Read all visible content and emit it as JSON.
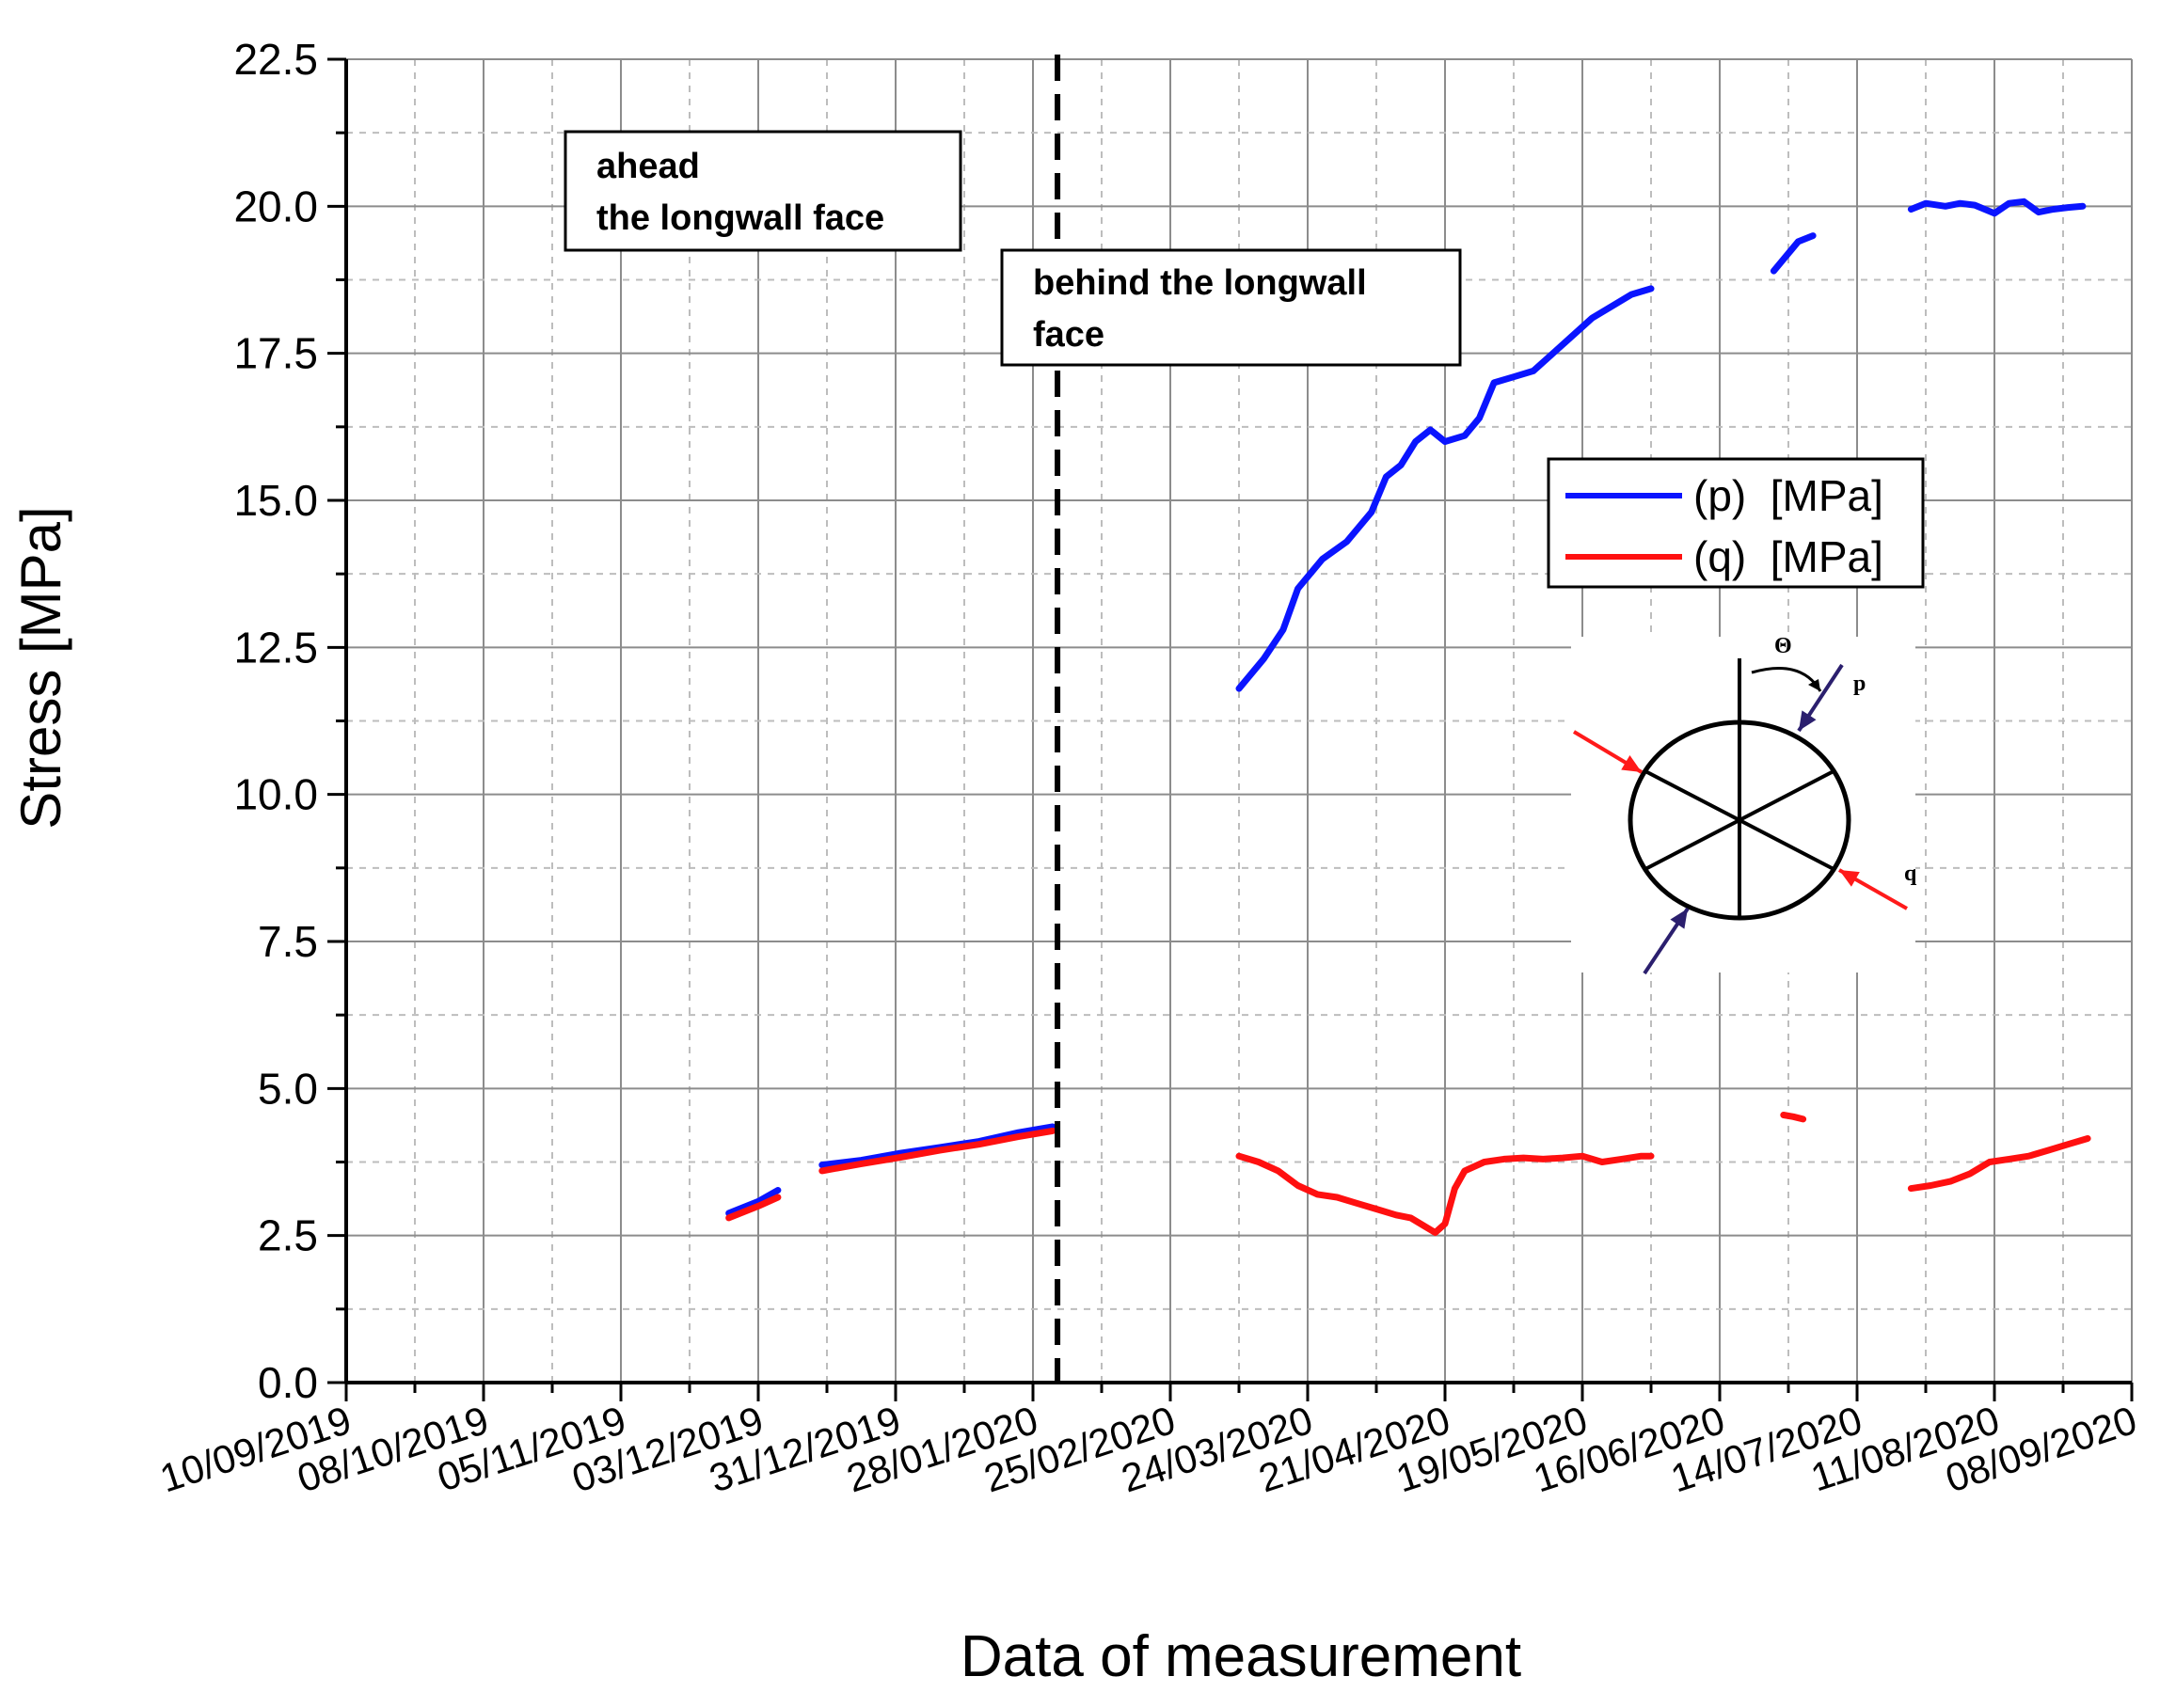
{
  "chart_data": {
    "type": "line",
    "xlabel": "Data of measurement",
    "ylabel": "Stress [MPa]",
    "xlim": [
      "10/09/2019",
      "08/09/2020"
    ],
    "ylim": [
      0,
      22.5
    ],
    "x_ticks": [
      "10/09/2019",
      "08/10/2019",
      "05/11/2019",
      "03/12/2019",
      "31/12/2019",
      "28/01/2020",
      "25/02/2020",
      "24/03/2020",
      "21/04/2020",
      "19/05/2020",
      "16/06/2020",
      "14/07/2020",
      "11/08/2020",
      "08/09/2020"
    ],
    "y_ticks": [
      "0.0",
      "2.5",
      "5.0",
      "7.5",
      "10.0",
      "12.5",
      "15.0",
      "17.5",
      "20.0",
      "22.5"
    ],
    "grid": true,
    "legend_position": "right",
    "face_line_date": "02/02/2020",
    "annotations": [
      "ahead\nthe longwall face",
      "behind the longwall\nface"
    ],
    "colors": {
      "p": "#0a14ff",
      "q": "#ff1010",
      "face_line": "#000000",
      "inset_p_arrow": "#2b1f6e",
      "inset_q_arrow": "#ff1a1a"
    },
    "series": [
      {
        "name": "(p)  [MPa]",
        "segments": [
          {
            "x": [
              "27/11/2019",
              "03/12/2019",
              "07/12/2019"
            ],
            "y": [
              2.88,
              3.08,
              3.27
            ]
          },
          {
            "x": [
              "16/12/2019",
              "24/12/2019",
              "01/01/2020",
              "09/01/2020",
              "17/01/2020",
              "25/01/2020",
              "01/02/2020"
            ],
            "y": [
              3.7,
              3.78,
              3.9,
              4.0,
              4.1,
              4.25,
              4.35
            ]
          },
          {
            "x": [
              "10/03/2020",
              "15/03/2020",
              "19/03/2020",
              "22/03/2020",
              "27/03/2020",
              "01/04/2020",
              "06/04/2020",
              "09/04/2020",
              "12/04/2020",
              "15/04/2020",
              "18/04/2020",
              "21/04/2020",
              "25/04/2020",
              "28/04/2020",
              "01/05/2020",
              "05/05/2020",
              "09/05/2020",
              "13/05/2020",
              "17/05/2020",
              "21/05/2020",
              "25/05/2020",
              "29/05/2020",
              "02/06/2020"
            ],
            "y": [
              11.8,
              12.3,
              12.8,
              13.5,
              14.0,
              14.3,
              14.8,
              15.4,
              15.6,
              16.0,
              16.2,
              16.0,
              16.1,
              16.4,
              17.0,
              17.1,
              17.2,
              17.5,
              17.8,
              18.1,
              18.3,
              18.5,
              18.6
            ]
          },
          {
            "x": [
              "27/06/2020",
              "30/06/2020",
              "02/07/2020",
              "05/07/2020"
            ],
            "y": [
              18.9,
              19.2,
              19.4,
              19.5
            ]
          },
          {
            "x": [
              "25/07/2020",
              "28/07/2020",
              "01/08/2020",
              "04/08/2020",
              "07/08/2020",
              "11/08/2020",
              "14/08/2020",
              "17/08/2020",
              "20/08/2020",
              "23/08/2020",
              "26/08/2020",
              "29/08/2020"
            ],
            "y": [
              19.95,
              20.05,
              20.0,
              20.05,
              20.02,
              19.88,
              20.05,
              20.08,
              19.9,
              19.95,
              19.98,
              20.0
            ]
          }
        ]
      },
      {
        "name": "(q)  [MPa]",
        "segments": [
          {
            "x": [
              "27/11/2019",
              "03/12/2019",
              "07/12/2019"
            ],
            "y": [
              2.8,
              3.0,
              3.15
            ]
          },
          {
            "x": [
              "16/12/2019",
              "24/12/2019",
              "01/01/2020",
              "09/01/2020",
              "17/01/2020",
              "25/01/2020",
              "01/02/2020"
            ],
            "y": [
              3.6,
              3.72,
              3.83,
              3.95,
              4.05,
              4.18,
              4.28
            ]
          },
          {
            "x": [
              "10/03/2020",
              "14/03/2020",
              "18/03/2020",
              "22/03/2020",
              "26/03/2020",
              "30/03/2020",
              "03/04/2020",
              "07/04/2020",
              "11/04/2020",
              "14/04/2020",
              "17/04/2020",
              "19/04/2020",
              "21/04/2020",
              "23/04/2020",
              "25/04/2020",
              "29/04/2020",
              "03/05/2020",
              "07/05/2020",
              "11/05/2020",
              "15/05/2020",
              "19/05/2020",
              "23/05/2020",
              "27/05/2020",
              "31/05/2020",
              "02/06/2020"
            ],
            "y": [
              3.85,
              3.75,
              3.6,
              3.35,
              3.2,
              3.15,
              3.05,
              2.95,
              2.85,
              2.8,
              2.65,
              2.55,
              2.7,
              3.3,
              3.6,
              3.75,
              3.8,
              3.82,
              3.8,
              3.82,
              3.85,
              3.75,
              3.8,
              3.85,
              3.85
            ]
          },
          {
            "x": [
              "29/06/2020",
              "01/07/2020",
              "03/07/2020"
            ],
            "y": [
              4.55,
              4.52,
              4.48
            ]
          },
          {
            "x": [
              "25/07/2020",
              "29/07/2020",
              "02/08/2020",
              "06/08/2020",
              "10/08/2020",
              "14/08/2020",
              "18/08/2020",
              "22/08/2020",
              "26/08/2020",
              "30/08/2020"
            ],
            "y": [
              3.3,
              3.35,
              3.42,
              3.55,
              3.75,
              3.8,
              3.85,
              3.95,
              4.05,
              4.15
            ]
          }
        ]
      }
    ],
    "inset": {
      "theta_label": "Θ",
      "p_label": "p",
      "q_label": "q"
    }
  }
}
